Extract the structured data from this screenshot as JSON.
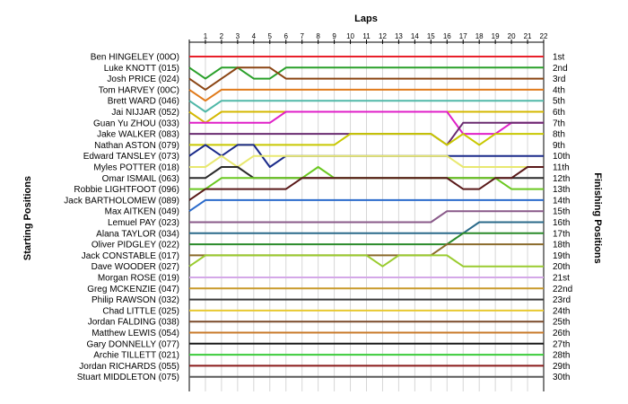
{
  "chart_data": {
    "type": "line",
    "title": "Laps",
    "ylabel_left": "Starting Positions",
    "ylabel_right": "Finishing Positions",
    "laps": [
      0,
      1,
      2,
      3,
      4,
      5,
      6,
      7,
      8,
      9,
      10,
      11,
      12,
      13,
      14,
      15,
      16,
      17,
      18,
      19,
      20,
      21,
      22
    ],
    "lap_labels": [
      "1",
      "2",
      "3",
      "4",
      "5",
      "6",
      "7",
      "8",
      "9",
      "10",
      "11",
      "12",
      "13",
      "14",
      "15",
      "16",
      "17",
      "18",
      "19",
      "20",
      "21",
      "22"
    ],
    "finishing_labels": [
      "1st",
      "2nd",
      "3rd",
      "4th",
      "5th",
      "6th",
      "7th",
      "8th",
      "9th",
      "10th",
      "11th",
      "12th",
      "13th",
      "14th",
      "15th",
      "16th",
      "17th",
      "18th",
      "19th",
      "20th",
      "21st",
      "22nd",
      "23rd",
      "24th",
      "25th",
      "26th",
      "27th",
      "28th",
      "29th",
      "30th"
    ],
    "series": [
      {
        "name": "Ben HINGELEY (00O)",
        "color": "#e8202a",
        "positions": [
          1,
          1,
          1,
          1,
          1,
          1,
          1,
          1,
          1,
          1,
          1,
          1,
          1,
          1,
          1,
          1,
          1,
          1,
          1,
          1,
          1,
          1,
          1
        ]
      },
      {
        "name": "Luke KNOTT (015)",
        "color": "#2aa02a",
        "positions": [
          2,
          3,
          2,
          2,
          3,
          3,
          2,
          2,
          2,
          2,
          2,
          2,
          2,
          2,
          2,
          2,
          2,
          2,
          2,
          2,
          2,
          2,
          2
        ]
      },
      {
        "name": "Josh PRICE (024)",
        "color": "#8b4513",
        "positions": [
          3,
          4,
          3,
          2,
          2,
          2,
          3,
          3,
          3,
          3,
          3,
          3,
          3,
          3,
          3,
          3,
          3,
          3,
          3,
          3,
          3,
          3,
          3
        ]
      },
      {
        "name": "Tom HARVEY (00C)",
        "color": "#e07a1a",
        "positions": [
          4,
          5,
          4,
          4,
          4,
          4,
          4,
          4,
          4,
          4,
          4,
          4,
          4,
          4,
          4,
          4,
          4,
          4,
          4,
          4,
          4,
          4,
          4
        ]
      },
      {
        "name": "Brett WARD (046)",
        "color": "#50b8a8",
        "positions": [
          5,
          6,
          5,
          5,
          5,
          5,
          5,
          5,
          5,
          5,
          5,
          5,
          5,
          5,
          5,
          5,
          5,
          5,
          5,
          5,
          5,
          5,
          5
        ]
      },
      {
        "name": "Jai NIJJAR (052)",
        "color": "#d4b800",
        "positions": [
          6,
          7,
          6,
          6,
          6,
          6,
          6,
          6,
          6,
          6,
          6,
          6,
          6,
          6,
          6,
          6,
          6,
          6,
          6,
          6,
          6,
          6,
          6
        ]
      },
      {
        "name": "Guan Yu ZHOU (033)",
        "color": "#e020c8",
        "positions": [
          7,
          7,
          7,
          7,
          7,
          7,
          6,
          6,
          6,
          6,
          6,
          6,
          6,
          6,
          6,
          6,
          6,
          8,
          8,
          8,
          7,
          7,
          7
        ]
      },
      {
        "name": "Jake WALKER (083)",
        "color": "#6a2c70",
        "positions": [
          8,
          8,
          8,
          8,
          8,
          8,
          8,
          8,
          8,
          8,
          8,
          8,
          8,
          8,
          8,
          8,
          9,
          7,
          7,
          7,
          7,
          7,
          7
        ]
      },
      {
        "name": "Nathan ASTON (079)",
        "color": "#c8c800",
        "positions": [
          9,
          9,
          9,
          9,
          9,
          9,
          9,
          9,
          9,
          9,
          8,
          8,
          8,
          8,
          8,
          8,
          9,
          8,
          9,
          8,
          8,
          8,
          8
        ]
      },
      {
        "name": "Edward TANSLEY (073)",
        "color": "#1a2a8a",
        "positions": [
          10,
          9,
          10,
          9,
          9,
          11,
          10,
          10,
          10,
          10,
          10,
          10,
          10,
          10,
          10,
          10,
          10,
          10,
          10,
          10,
          10,
          10,
          10
        ]
      },
      {
        "name": "Myles POTTER (018)",
        "color": "#e8e870",
        "positions": [
          11,
          11,
          10,
          11,
          10,
          10,
          10,
          10,
          10,
          10,
          10,
          10,
          10,
          10,
          10,
          10,
          10,
          11,
          11,
          11,
          11,
          11,
          11
        ]
      },
      {
        "name": "Omar ISMAIL (063)",
        "color": "#2a2a2a",
        "positions": [
          12,
          12,
          11,
          11,
          12,
          12,
          12,
          12,
          12,
          12,
          12,
          12,
          12,
          12,
          12,
          12,
          12,
          12,
          12,
          12,
          12,
          12,
          12
        ]
      },
      {
        "name": "Robbie LIGHTFOOT (096)",
        "color": "#6ac820",
        "positions": [
          13,
          13,
          12,
          12,
          12,
          12,
          12,
          12,
          11,
          12,
          12,
          12,
          12,
          12,
          12,
          12,
          12,
          12,
          12,
          12,
          13,
          13,
          13
        ]
      },
      {
        "name": "Jack BARTHOLOMEW (089)",
        "color": "#5a1a1a",
        "positions": [
          14,
          13,
          13,
          13,
          13,
          13,
          13,
          12,
          12,
          12,
          12,
          12,
          12,
          12,
          12,
          12,
          12,
          13,
          13,
          12,
          12,
          11,
          11
        ]
      },
      {
        "name": "Max AITKEN (049)",
        "color": "#2a6acb",
        "positions": [
          15,
          14,
          14,
          14,
          14,
          14,
          14,
          14,
          14,
          14,
          14,
          14,
          14,
          14,
          14,
          14,
          14,
          14,
          14,
          14,
          14,
          14,
          14
        ]
      },
      {
        "name": "Lemuel PAY (023)",
        "color": "#8a5a8a",
        "positions": [
          16,
          16,
          16,
          16,
          16,
          16,
          16,
          16,
          16,
          16,
          16,
          16,
          16,
          16,
          16,
          16,
          15,
          15,
          15,
          15,
          15,
          15,
          15
        ]
      },
      {
        "name": "Alana TAYLOR (034)",
        "color": "#2a6a8a",
        "positions": [
          17,
          17,
          17,
          17,
          17,
          17,
          17,
          17,
          17,
          17,
          17,
          17,
          17,
          17,
          17,
          17,
          17,
          17,
          16,
          16,
          16,
          16,
          16
        ]
      },
      {
        "name": "Oliver PIDGLEY (022)",
        "color": "#2a8a2a",
        "positions": [
          18,
          18,
          18,
          18,
          18,
          18,
          18,
          18,
          18,
          18,
          18,
          18,
          18,
          18,
          18,
          18,
          18,
          17,
          17,
          17,
          17,
          17,
          17
        ]
      },
      {
        "name": "Jack CONSTABLE (017)",
        "color": "#8a6a2a",
        "positions": [
          19,
          19,
          19,
          19,
          19,
          19,
          19,
          19,
          19,
          19,
          19,
          19,
          19,
          19,
          19,
          19,
          18,
          18,
          18,
          18,
          18,
          18,
          18
        ]
      },
      {
        "name": "Dave WOODER (027)",
        "color": "#9acc30",
        "positions": [
          20,
          19,
          19,
          19,
          19,
          19,
          19,
          19,
          19,
          19,
          19,
          19,
          20,
          19,
          19,
          19,
          19,
          20,
          20,
          20,
          20,
          20,
          20
        ]
      },
      {
        "name": "Morgan ROSE (019)",
        "color": "#d4a8e8",
        "positions": [
          21,
          21,
          21,
          21,
          21,
          21,
          21,
          21,
          21,
          21,
          21,
          21,
          21,
          21,
          21,
          21,
          21,
          21,
          21,
          21,
          21,
          21,
          21
        ]
      },
      {
        "name": "Greg MCKENZIE (047)",
        "color": "#c89a2a",
        "positions": [
          22,
          22,
          22,
          22,
          22,
          22,
          22,
          22,
          22,
          22,
          22,
          22,
          22,
          22,
          22,
          22,
          22,
          22,
          22,
          22,
          22,
          22,
          22
        ]
      },
      {
        "name": "Philip RAWSON (032)",
        "color": "#3a3a3a",
        "positions": [
          23,
          23,
          23,
          23,
          23,
          23,
          23,
          23,
          23,
          23,
          23,
          23,
          23,
          23,
          23,
          23,
          23,
          23,
          23,
          23,
          23,
          23,
          23
        ]
      },
      {
        "name": "Chad LITTLE (025)",
        "color": "#e8c830",
        "positions": [
          24,
          24,
          24,
          24,
          24,
          24,
          24,
          24,
          24,
          24,
          24,
          24,
          24,
          24,
          24,
          24,
          24,
          24,
          24,
          24,
          24,
          24,
          24
        ]
      },
      {
        "name": "Jordan FALDING (038)",
        "color": "#7a4a2a",
        "positions": [
          25,
          25,
          25,
          25,
          25,
          25,
          25,
          25,
          25,
          25,
          25,
          25,
          25,
          25,
          25,
          25,
          25,
          25,
          25,
          25,
          25,
          25,
          25
        ]
      },
      {
        "name": "Matthew LEWIS (054)",
        "color": "#c87a2a",
        "positions": [
          26,
          26,
          26,
          26,
          26,
          26,
          26,
          26,
          26,
          26,
          26,
          26,
          26,
          26,
          26,
          26,
          26,
          26,
          26,
          26,
          26,
          26,
          26
        ]
      },
      {
        "name": "Gary DONNELLY (077)",
        "color": "#1a1a1a",
        "positions": [
          27,
          27,
          27,
          27,
          27,
          27,
          27,
          27,
          27,
          27,
          27,
          27,
          27,
          27,
          27,
          27,
          27,
          27,
          27,
          27,
          27,
          27,
          27
        ]
      },
      {
        "name": "Archie TILLETT (021)",
        "color": "#3acb3a",
        "positions": [
          28,
          28,
          28,
          28,
          28,
          28,
          28,
          28,
          28,
          28,
          28,
          28,
          28,
          28,
          28,
          28,
          28,
          28,
          28,
          28,
          28,
          28,
          28
        ]
      },
      {
        "name": "Jordan RICHARDS (055)",
        "color": "#8a1a1a",
        "positions": [
          29,
          29,
          29,
          29,
          29,
          29,
          29,
          29,
          29,
          29,
          29,
          29,
          29,
          29,
          29,
          29,
          29,
          29,
          29,
          29,
          29,
          29,
          29
        ]
      },
      {
        "name": "Stuart MIDDLETON (075)",
        "color": "#5a5a5a",
        "positions": [
          30,
          30,
          30,
          30,
          30,
          30,
          30,
          30,
          30,
          30,
          30,
          30,
          30,
          30,
          30,
          30,
          30,
          30,
          30,
          30,
          30,
          30,
          30
        ]
      }
    ]
  }
}
